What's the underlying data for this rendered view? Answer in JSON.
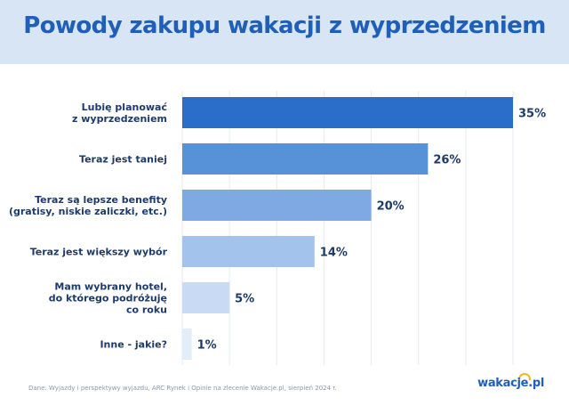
{
  "header": {
    "title": "Powody zakupu wakacji z wyprzedzeniem"
  },
  "chart_data": {
    "type": "bar",
    "orientation": "horizontal",
    "title": "Powody zakupu wakacji z wyprzedzeniem",
    "categories": [
      [
        "Lubię planować",
        "z wyprzedzeniem"
      ],
      [
        "Teraz jest taniej"
      ],
      [
        "Teraz są lepsze benefity",
        "(gratisy, niskie zaliczki, etc.)"
      ],
      [
        "Teraz jest większy wybór"
      ],
      [
        "Mam wybrany hotel,",
        "do którego podróżuję",
        "co roku"
      ],
      [
        "Inne - jakie?"
      ]
    ],
    "values": [
      35,
      26,
      20,
      14,
      5,
      1
    ],
    "value_labels": [
      "35%",
      "26%",
      "20%",
      "14%",
      "5%",
      "1%"
    ],
    "xlim": [
      0,
      35
    ],
    "grid": true,
    "colors": [
      "#2a6ec9",
      "#5792d8",
      "#7ea9e2",
      "#a4c3ec",
      "#c9dbf4",
      "#e3ecf9"
    ]
  },
  "footer": {
    "source": "Dane: Wyjazdy i perspektywy wyjazdu, ARC Rynek i Opinie na zlecenie Wakacje.pl, sierpień 2024 r.",
    "logo": "wakacje.pl"
  }
}
